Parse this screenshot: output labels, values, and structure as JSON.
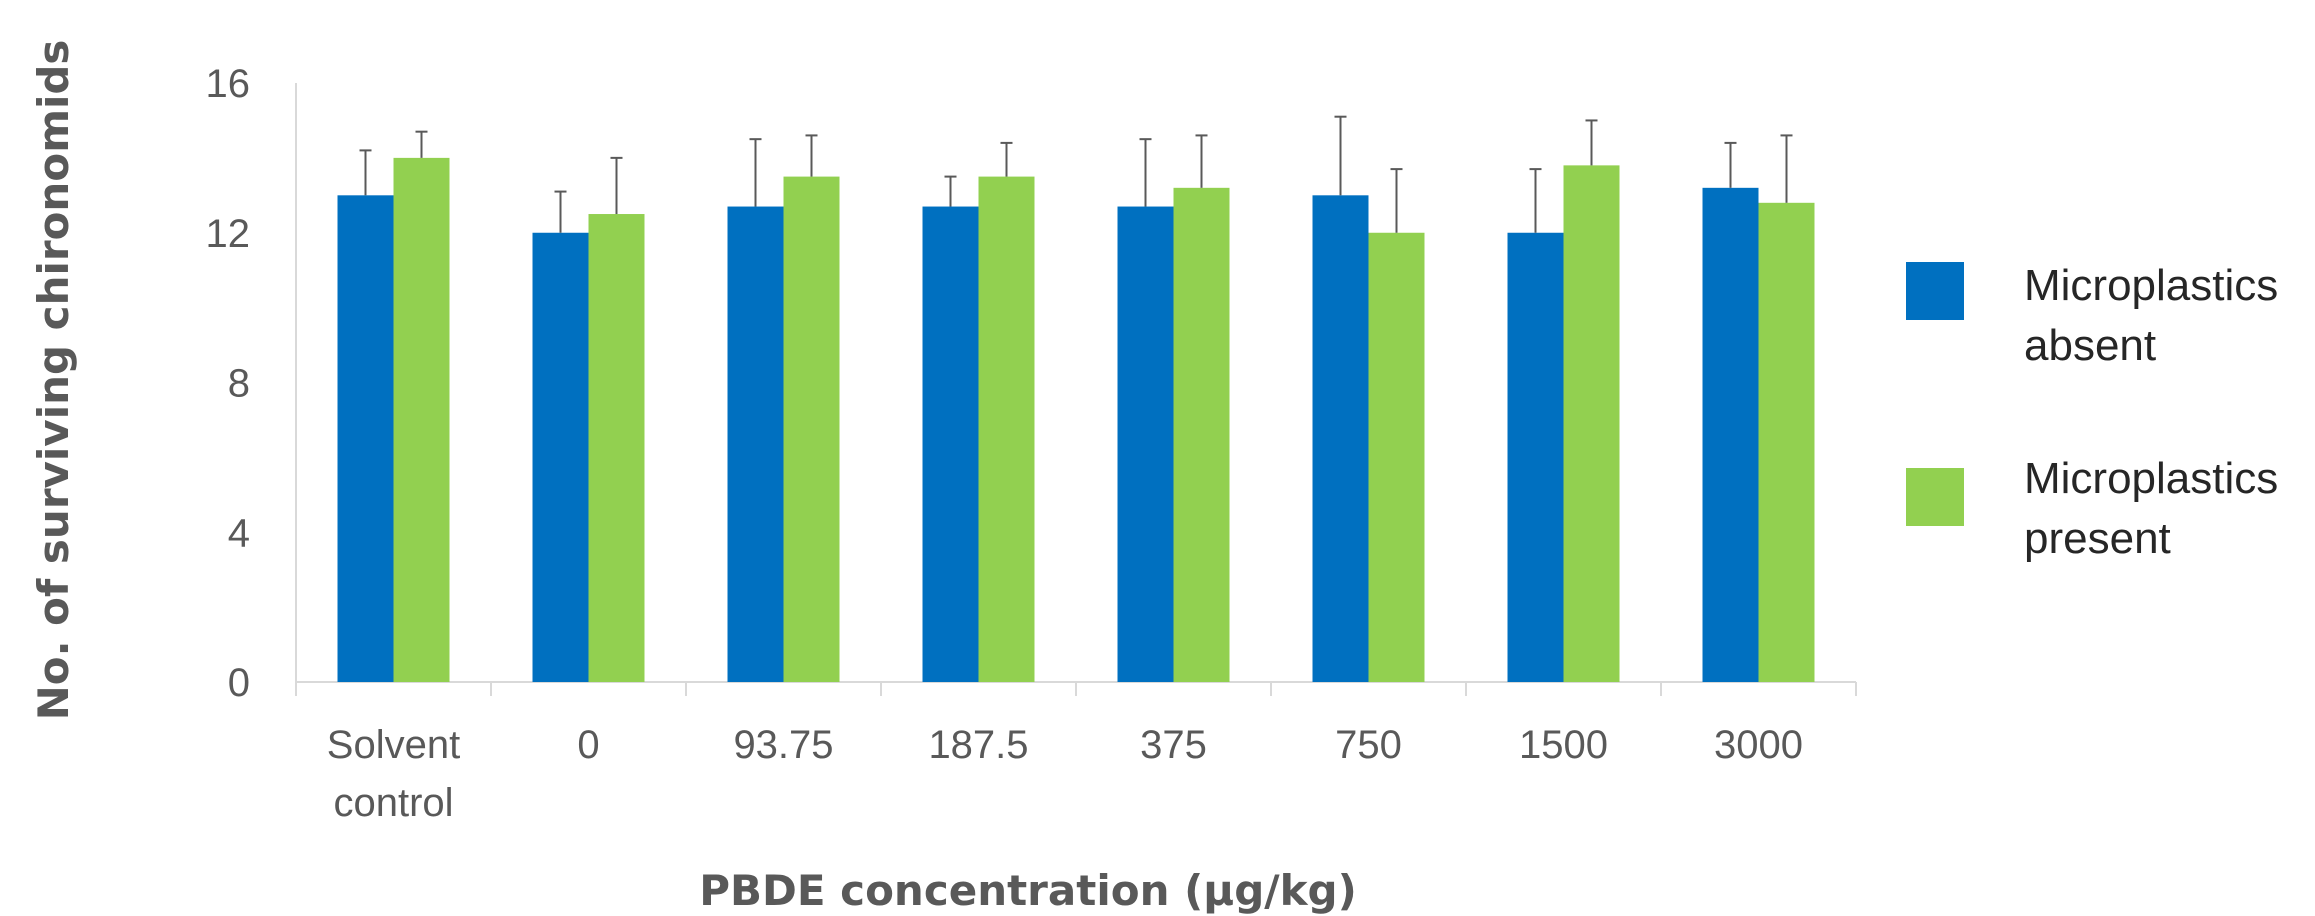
{
  "chart_data": {
    "type": "bar",
    "categories": [
      [
        "Solvent",
        "control"
      ],
      [
        "0"
      ],
      [
        "93.75"
      ],
      [
        "187.5"
      ],
      [
        "375"
      ],
      [
        "750"
      ],
      [
        "1500"
      ],
      [
        "3000"
      ]
    ],
    "series": [
      {
        "name": [
          "Microplastics",
          "absent"
        ],
        "color": "#0070C0",
        "values": [
          13.0,
          12.0,
          12.7,
          12.7,
          12.7,
          13.0,
          12.0,
          13.2
        ],
        "errors": [
          1.2,
          1.1,
          1.8,
          0.8,
          1.8,
          2.1,
          1.7,
          1.2
        ]
      },
      {
        "name": [
          "Microplastics",
          "present"
        ],
        "color": "#92D050",
        "values": [
          14.0,
          12.5,
          13.5,
          13.5,
          13.2,
          12.0,
          13.8,
          12.8
        ],
        "errors": [
          0.7,
          1.5,
          1.1,
          0.9,
          1.4,
          1.7,
          1.2,
          1.8
        ]
      }
    ],
    "xlabel": "PBDE concentration (µg/kg)",
    "ylabel": "No. of surviving chironomids",
    "ylim": [
      0,
      16
    ],
    "yticks": [
      "0",
      "4",
      "8",
      "12",
      "16"
    ],
    "grid": false,
    "legend": "right"
  }
}
